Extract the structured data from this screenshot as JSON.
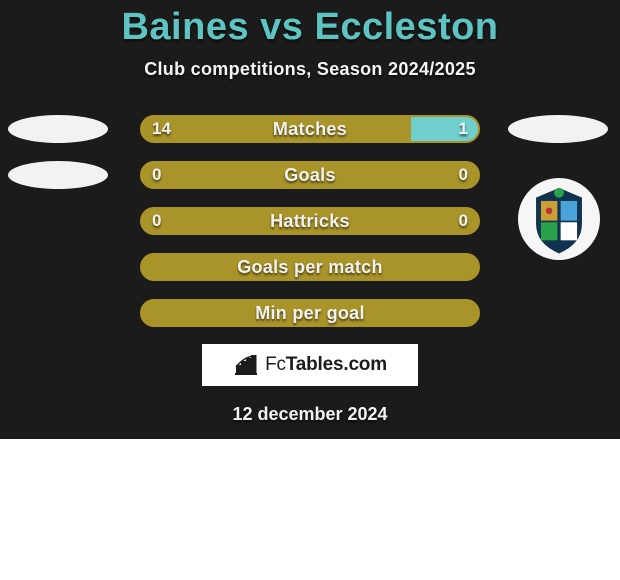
{
  "colors": {
    "background": "#1b1b1b",
    "title": "#5dc4c1",
    "subtitle_text": "#f5f5f5",
    "row_text": "#f2f2f2",
    "bar_fill": "#a99429",
    "bar_outline": "#aa9327",
    "bar_outline_width": 2,
    "bar_alt_fill": "#6fcfcc",
    "avatar_fill": "#f2f2f2",
    "crest_bg": "#f6f6f6",
    "logo_bg": "#ffffff",
    "logo_text": "#1c1c1c",
    "icon_stroke": "#1c1c1c",
    "date_text": "#f2f2f2"
  },
  "title": {
    "player_left": "Baines",
    "vs": "vs",
    "player_right": "Eccleston",
    "fontsize": 38
  },
  "subtitle": "Club competitions, Season 2024/2025",
  "subtitle_fontsize": 18,
  "bar_geometry": {
    "track_width": 340,
    "track_height": 28,
    "border_radius": 14
  },
  "rows": [
    {
      "label": "Matches",
      "left": "14",
      "right": "1",
      "left_pct": 80,
      "right_pct": 20,
      "show_left_avatar": true,
      "show_right_avatar": true,
      "has_values": true
    },
    {
      "label": "Goals",
      "left": "0",
      "right": "0",
      "left_pct": 100,
      "right_pct": 0,
      "show_left_avatar": true,
      "show_right_avatar": false,
      "has_values": true
    },
    {
      "label": "Hattricks",
      "left": "0",
      "right": "0",
      "left_pct": 100,
      "right_pct": 0,
      "show_left_avatar": false,
      "show_right_avatar": false,
      "has_values": true
    },
    {
      "label": "Goals per match",
      "left": "",
      "right": "",
      "left_pct": 100,
      "right_pct": 0,
      "show_left_avatar": false,
      "show_right_avatar": false,
      "has_values": false
    },
    {
      "label": "Min per goal",
      "left": "",
      "right": "",
      "left_pct": 100,
      "right_pct": 0,
      "show_left_avatar": false,
      "show_right_avatar": false,
      "has_values": false
    }
  ],
  "crest": {
    "bg": "#f6f6f6",
    "shield": "#12334f",
    "accent_green": "#2aa24b",
    "accent_gold": "#c9a038",
    "accent_red": "#b33",
    "accent_blue": "#4aa3d8"
  },
  "logo": {
    "prefix": "Fc",
    "suffix": "Tables.com"
  },
  "date": "12 december 2024"
}
